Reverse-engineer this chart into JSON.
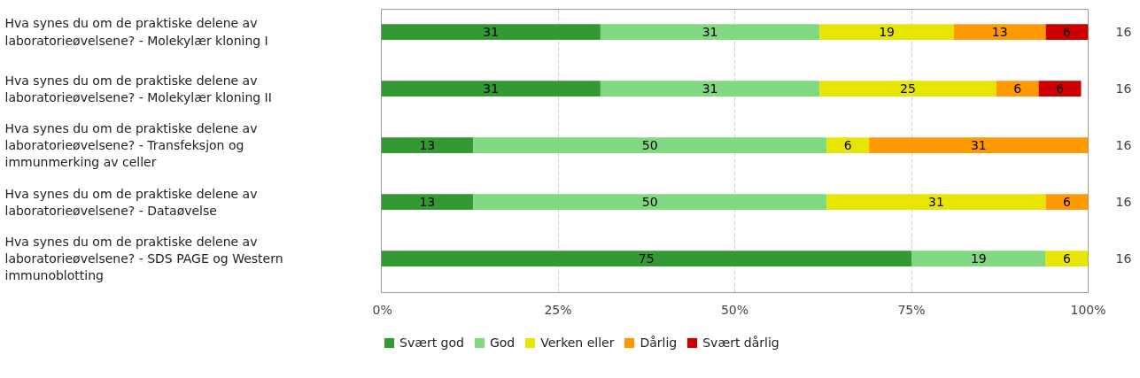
{
  "chart_data": {
    "type": "bar",
    "orientation": "horizontal",
    "stacked": true,
    "data_labels": true,
    "grid": "x",
    "legend": "bottom",
    "categories": [
      "Hva synes du om de praktiske delene av laboratorieøvelsene? - Molekylær kloning I",
      "Hva synes du om de praktiske delene av laboratorieøvelsene? - Molekylær kloning II",
      "Hva synes du om de praktiske delene av laboratorieøvelsene? - Transfeksjon og immunmerking av celler",
      "Hva synes du om de praktiske delene av laboratorieøvelsene? - Dataøvelse",
      "Hva synes du om de praktiske delene av laboratorieøvelsene? - SDS PAGE og Western immunoblotting"
    ],
    "series": [
      {
        "name": "Svært god",
        "color": "#339933",
        "values": [
          31,
          31,
          13,
          13,
          75
        ]
      },
      {
        "name": "God",
        "color": "#80d880",
        "values": [
          31,
          31,
          50,
          50,
          19
        ]
      },
      {
        "name": "Verken eller",
        "color": "#e6e600",
        "values": [
          19,
          25,
          6,
          31,
          6
        ]
      },
      {
        "name": "Dårlig",
        "color": "#ff9900",
        "values": [
          13,
          6,
          31,
          6,
          null
        ]
      },
      {
        "name": "Svært dårlig",
        "color": "#cc0000",
        "values": [
          6,
          6,
          null,
          null,
          null
        ]
      }
    ],
    "xlim": [
      0,
      100
    ],
    "xticks": [
      {
        "value": 0,
        "label": "0%"
      },
      {
        "value": 25,
        "label": "25%"
      },
      {
        "value": 50,
        "label": "50%"
      },
      {
        "value": 75,
        "label": "75%"
      },
      {
        "value": 100,
        "label": "100%"
      }
    ],
    "annotations": [
      "16",
      "16",
      "16",
      "16",
      "16"
    ]
  }
}
